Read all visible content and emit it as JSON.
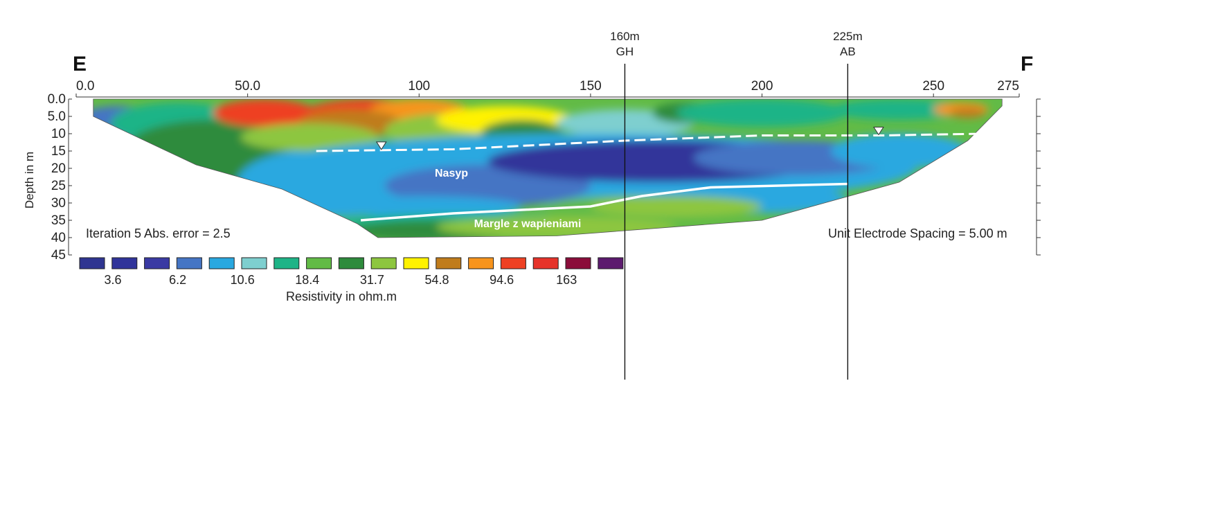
{
  "chart_data": {
    "type": "heatmap",
    "endpoint_left": "E",
    "endpoint_right": "F",
    "x_ticks": [
      "0.0",
      "50.0",
      "100",
      "150",
      "200",
      "250",
      "275"
    ],
    "x_tick_values": [
      0,
      50,
      100,
      150,
      200,
      250,
      275
    ],
    "xlim": [
      0,
      275
    ],
    "ylabel": "Depth in m",
    "y_ticks": [
      "0.0",
      "5.0",
      "10",
      "15",
      "20",
      "25",
      "30",
      "35",
      "40",
      "45"
    ],
    "y_tick_values": [
      0,
      5,
      10,
      15,
      20,
      25,
      30,
      35,
      40,
      45
    ],
    "ylim": [
      0,
      45
    ],
    "y_inverted": true,
    "profile_bottom": [
      [
        5,
        5
      ],
      [
        35,
        19
      ],
      [
        60,
        26
      ],
      [
        82,
        36
      ],
      [
        88,
        40
      ],
      [
        140,
        39.5
      ],
      [
        200,
        35
      ],
      [
        240,
        24
      ],
      [
        260,
        12
      ],
      [
        270,
        2
      ]
    ],
    "markers": [
      {
        "x": 160,
        "label_top": "160m",
        "label_bottom": "GH"
      },
      {
        "x": 225,
        "label_top": "225m",
        "label_bottom": "AB"
      }
    ],
    "water_table": {
      "style": "dashed",
      "points": [
        [
          70,
          15
        ],
        [
          110,
          14.5
        ],
        [
          160,
          12
        ],
        [
          200,
          10.5
        ],
        [
          235,
          10.5
        ],
        [
          265,
          10
        ]
      ],
      "symbol_x": [
        89,
        234
      ]
    },
    "layer_boundary": {
      "style": "solid",
      "points": [
        [
          83,
          35
        ],
        [
          110,
          33
        ],
        [
          150,
          31
        ],
        [
          165,
          28
        ],
        [
          185,
          25.5
        ],
        [
          225,
          24.5
        ]
      ]
    },
    "annotations": {
      "iteration": "Iteration 5  Abs. error = 2.5",
      "spacing": "Unit Electrode Spacing = 5.00 m",
      "layer_upper": "Nasyp",
      "layer_lower": "Margle z wapieniami"
    },
    "colorbar": {
      "colors": [
        "#2f3591",
        "#30349a",
        "#3a3aa3",
        "#4575c4",
        "#29a8e0",
        "#7ecfcf",
        "#1eb487",
        "#62bb46",
        "#2e8b3c",
        "#8dc63f",
        "#fff200",
        "#c07c1c",
        "#f7941d",
        "#ee4123",
        "#e6332a",
        "#8b0d3a",
        "#5c1a6e"
      ],
      "labels": [
        "3.6",
        "6.2",
        "10.6",
        "18.4",
        "31.7",
        "54.8",
        "94.6",
        "163"
      ],
      "label": "Resistivity in ohm.m"
    }
  }
}
